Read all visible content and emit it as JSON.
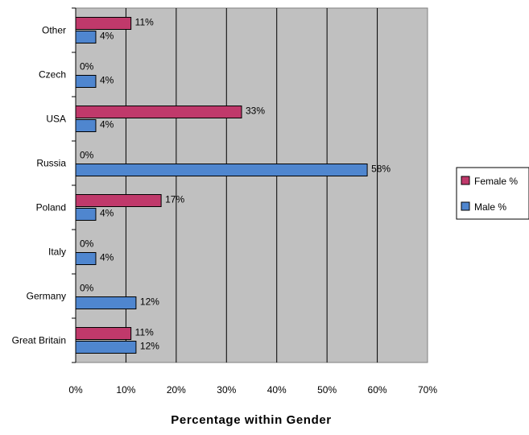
{
  "chart_data": {
    "type": "bar",
    "orientation": "horizontal",
    "categories": [
      "Great Britain",
      "Germany",
      "Italy",
      "Poland",
      "Russia",
      "USA",
      "Czech",
      "Other"
    ],
    "series": [
      {
        "name": "Female %",
        "color": "#C0396B",
        "values": [
          11,
          0,
          0,
          17,
          0,
          33,
          0,
          11
        ],
        "labels": [
          "11%",
          "0%",
          "0%",
          "17%",
          "0%",
          "33%",
          "0%",
          "11%"
        ]
      },
      {
        "name": "Male %",
        "color": "#4F86CF",
        "values": [
          12,
          12,
          4,
          4,
          58,
          4,
          4,
          4
        ],
        "labels": [
          "12%",
          "12%",
          "4%",
          "4%",
          "58%",
          "4%",
          "4%",
          "4%"
        ]
      }
    ],
    "xlabel": "Percentage within Gender",
    "ylabel": "",
    "xlim": [
      0,
      70
    ],
    "xticks": [
      0,
      10,
      20,
      30,
      40,
      50,
      60,
      70
    ],
    "xtick_labels": [
      "0%",
      "10%",
      "20%",
      "30%",
      "40%",
      "50%",
      "60%",
      "70%"
    ],
    "grid": true,
    "plot_background": "#C0C0C0",
    "legend_position": "right"
  }
}
